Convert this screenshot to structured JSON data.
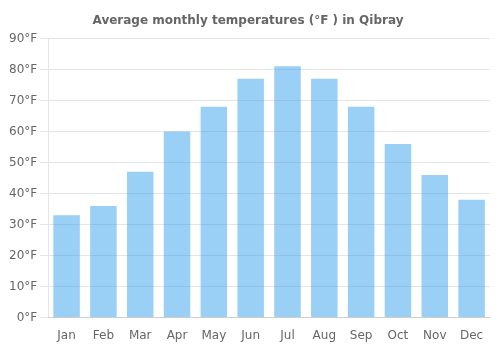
{
  "chart_data": {
    "type": "bar",
    "title": "Average monthly temperatures (°F ) in Qibray",
    "categories": [
      "Jan",
      "Feb",
      "Mar",
      "Apr",
      "May",
      "Jun",
      "Jul",
      "Aug",
      "Sep",
      "Oct",
      "Nov",
      "Dec"
    ],
    "values": [
      33,
      36,
      47,
      60,
      68,
      77,
      81,
      77,
      68,
      56,
      46,
      38
    ],
    "ylim": [
      0,
      90
    ],
    "yticks": [
      {
        "value": 0,
        "label": "0°F"
      },
      {
        "value": 10,
        "label": "10°F"
      },
      {
        "value": 20,
        "label": "20°F"
      },
      {
        "value": 30,
        "label": "30°F"
      },
      {
        "value": 40,
        "label": "40°F"
      },
      {
        "value": 50,
        "label": "50°F"
      },
      {
        "value": 60,
        "label": "60°F"
      },
      {
        "value": 70,
        "label": "70°F"
      },
      {
        "value": 80,
        "label": "80°F"
      },
      {
        "value": 90,
        "label": "90°F"
      }
    ],
    "grid": true
  }
}
